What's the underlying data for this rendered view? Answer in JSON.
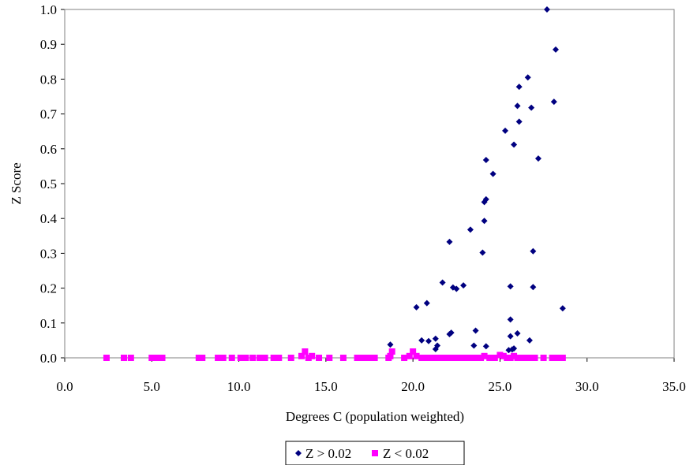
{
  "chart_data": {
    "type": "scatter",
    "title": "",
    "xlabel": "Degrees C (population weighted)",
    "ylabel": "Z Score",
    "xlim": [
      0,
      35
    ],
    "ylim": [
      0,
      1
    ],
    "x_ticks": [
      "0.0",
      "5.0",
      "10.0",
      "15.0",
      "20.0",
      "25.0",
      "30.0",
      "35.0"
    ],
    "y_ticks": [
      "0.0",
      "0.1",
      "0.2",
      "0.3",
      "0.4",
      "0.5",
      "0.6",
      "0.7",
      "0.8",
      "0.9",
      "1.0"
    ],
    "grid": false,
    "legend_position": "bottom",
    "series": [
      {
        "name": "Z > 0.02",
        "marker": "diamond",
        "color": "#000080",
        "points": [
          [
            27.7,
            1.0
          ],
          [
            28.2,
            0.885
          ],
          [
            26.6,
            0.805
          ],
          [
            26.1,
            0.778
          ],
          [
            28.1,
            0.735
          ],
          [
            26.0,
            0.723
          ],
          [
            26.8,
            0.718
          ],
          [
            26.1,
            0.678
          ],
          [
            25.3,
            0.652
          ],
          [
            25.8,
            0.612
          ],
          [
            27.2,
            0.572
          ],
          [
            24.2,
            0.568
          ],
          [
            24.6,
            0.528
          ],
          [
            24.2,
            0.455
          ],
          [
            24.1,
            0.447
          ],
          [
            24.1,
            0.393
          ],
          [
            23.3,
            0.368
          ],
          [
            22.1,
            0.333
          ],
          [
            24.0,
            0.302
          ],
          [
            26.9,
            0.306
          ],
          [
            21.7,
            0.216
          ],
          [
            22.9,
            0.208
          ],
          [
            22.3,
            0.202
          ],
          [
            22.5,
            0.198
          ],
          [
            25.6,
            0.205
          ],
          [
            26.9,
            0.203
          ],
          [
            20.8,
            0.157
          ],
          [
            20.2,
            0.145
          ],
          [
            28.6,
            0.142
          ],
          [
            25.6,
            0.11
          ],
          [
            23.6,
            0.078
          ],
          [
            22.2,
            0.072
          ],
          [
            22.1,
            0.068
          ],
          [
            25.6,
            0.062
          ],
          [
            26.0,
            0.07
          ],
          [
            21.3,
            0.055
          ],
          [
            20.9,
            0.048
          ],
          [
            20.5,
            0.05
          ],
          [
            26.7,
            0.05
          ],
          [
            18.7,
            0.038
          ],
          [
            21.4,
            0.035
          ],
          [
            23.5,
            0.035
          ],
          [
            24.2,
            0.033
          ],
          [
            25.5,
            0.022
          ],
          [
            25.8,
            0.027
          ],
          [
            21.3,
            0.025
          ],
          [
            25.7,
            0.024
          ]
        ]
      },
      {
        "name": "Z < 0.02",
        "marker": "square",
        "color": "#FF00FF",
        "points": [
          [
            2.4,
            0.0
          ],
          [
            3.4,
            0.0
          ],
          [
            3.8,
            0.0
          ],
          [
            5.0,
            0.0
          ],
          [
            5.3,
            0.0
          ],
          [
            5.6,
            0.0
          ],
          [
            7.7,
            0.0
          ],
          [
            7.9,
            0.0
          ],
          [
            8.8,
            0.0
          ],
          [
            9.1,
            0.0
          ],
          [
            9.6,
            0.0
          ],
          [
            10.1,
            0.0
          ],
          [
            10.4,
            0.0
          ],
          [
            10.8,
            0.0
          ],
          [
            11.2,
            0.0
          ],
          [
            11.5,
            0.0
          ],
          [
            12.0,
            0.0
          ],
          [
            12.3,
            0.0
          ],
          [
            13.0,
            0.0
          ],
          [
            13.6,
            0.005
          ],
          [
            13.8,
            0.018
          ],
          [
            14.0,
            0.0
          ],
          [
            14.2,
            0.005
          ],
          [
            14.6,
            0.0
          ],
          [
            15.2,
            0.0
          ],
          [
            16.0,
            0.0
          ],
          [
            16.8,
            0.0
          ],
          [
            17.0,
            0.0
          ],
          [
            17.2,
            0.0
          ],
          [
            17.5,
            0.0
          ],
          [
            17.8,
            0.0
          ],
          [
            18.6,
            0.0
          ],
          [
            18.8,
            0.018
          ],
          [
            18.7,
            0.005
          ],
          [
            19.5,
            0.0
          ],
          [
            19.8,
            0.005
          ],
          [
            20.0,
            0.018
          ],
          [
            20.2,
            0.005
          ],
          [
            20.5,
            0.0
          ],
          [
            20.8,
            0.0
          ],
          [
            21.0,
            0.0
          ],
          [
            21.3,
            0.0
          ],
          [
            21.5,
            0.0
          ],
          [
            21.8,
            0.0
          ],
          [
            22.0,
            0.0
          ],
          [
            22.3,
            0.0
          ],
          [
            22.5,
            0.0
          ],
          [
            22.8,
            0.0
          ],
          [
            23.0,
            0.0
          ],
          [
            23.3,
            0.0
          ],
          [
            23.6,
            0.0
          ],
          [
            23.9,
            0.0
          ],
          [
            24.1,
            0.005
          ],
          [
            24.4,
            0.0
          ],
          [
            24.7,
            0.0
          ],
          [
            25.0,
            0.008
          ],
          [
            25.2,
            0.005
          ],
          [
            25.4,
            0.0
          ],
          [
            25.6,
            0.0
          ],
          [
            25.8,
            0.005
          ],
          [
            26.0,
            0.0
          ],
          [
            26.2,
            0.0
          ],
          [
            26.5,
            0.0
          ],
          [
            26.8,
            0.0
          ],
          [
            27.0,
            0.0
          ],
          [
            27.5,
            0.0
          ],
          [
            28.0,
            0.0
          ],
          [
            28.3,
            0.0
          ],
          [
            28.6,
            0.0
          ]
        ]
      }
    ]
  }
}
